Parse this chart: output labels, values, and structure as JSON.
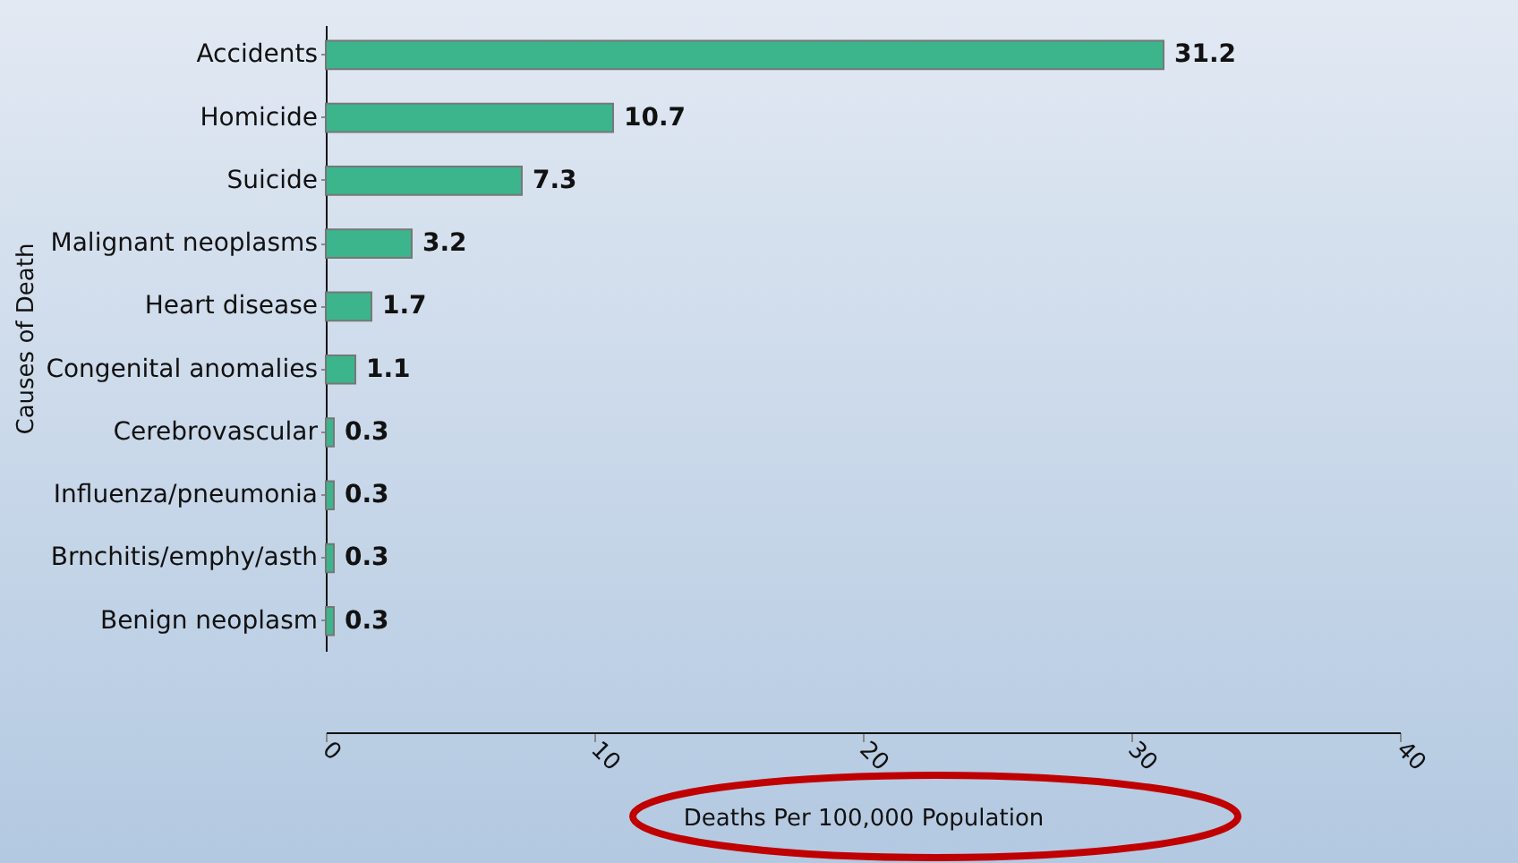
{
  "chart_data": {
    "type": "bar",
    "orientation": "horizontal",
    "xlabel": "Deaths Per 100,000 Population",
    "ylabel": "Causes of Death",
    "categories": [
      "Accidents",
      "Homicide",
      "Suicide",
      "Malignant neoplasms",
      "Heart disease",
      "Congenital anomalies",
      "Cerebrovascular",
      "Influenza/pneumonia",
      "Brnchitis/emphy/asth",
      "Benign neoplasm"
    ],
    "values": [
      31.2,
      10.7,
      7.3,
      3.2,
      1.7,
      1.1,
      0.3,
      0.3,
      0.3,
      0.3
    ],
    "color": "#3cb48c",
    "xlim": [
      0,
      40
    ],
    "xticks": [
      0,
      10,
      20,
      30,
      40
    ],
    "data_labels": true
  }
}
